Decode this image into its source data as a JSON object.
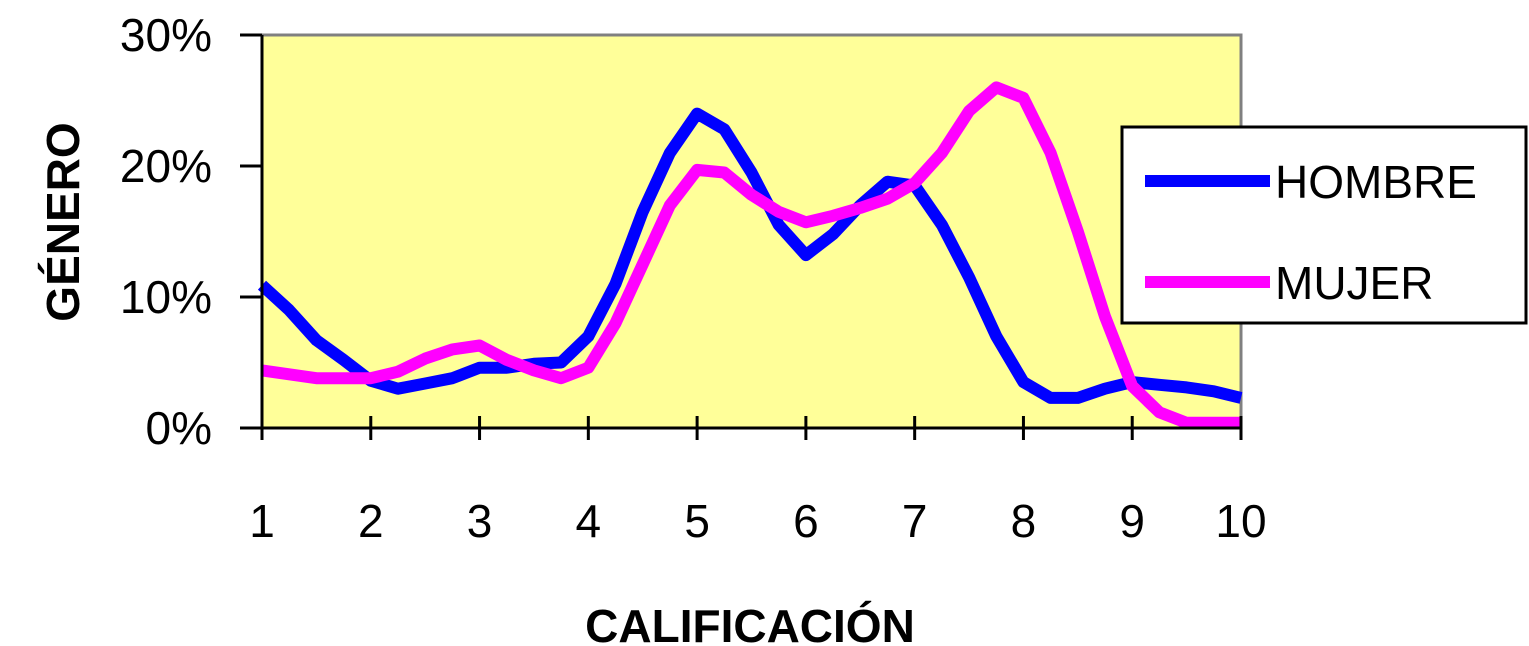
{
  "chart_data": {
    "type": "line",
    "xlabel": "CALIFICACIÓN",
    "ylabel": "GÉNERO",
    "x_ticks": [
      "1",
      "2",
      "3",
      "4",
      "5",
      "6",
      "7",
      "8",
      "9",
      "10"
    ],
    "y_ticks": [
      "0%",
      "10%",
      "20%",
      "30%"
    ],
    "ylim": [
      0,
      30
    ],
    "xlim": [
      1,
      10
    ],
    "grid": false,
    "plot_background": "#ffff99",
    "legend_position": "right",
    "series": [
      {
        "name": "HOMBRE",
        "color": "#0000ff",
        "points": [
          [
            1,
            10.9
          ],
          [
            1.25,
            9.0
          ],
          [
            1.5,
            6.7
          ],
          [
            1.75,
            5.2
          ],
          [
            2,
            3.6
          ],
          [
            2.25,
            3.0
          ],
          [
            2.5,
            3.4
          ],
          [
            2.75,
            3.8
          ],
          [
            3,
            4.6
          ],
          [
            3.25,
            4.6
          ],
          [
            3.5,
            4.9
          ],
          [
            3.75,
            5.0
          ],
          [
            4,
            7.0
          ],
          [
            4.25,
            11.0
          ],
          [
            4.5,
            16.5
          ],
          [
            4.75,
            21.0
          ],
          [
            5,
            24.0
          ],
          [
            5.25,
            22.8
          ],
          [
            5.5,
            19.5
          ],
          [
            5.75,
            15.5
          ],
          [
            6,
            13.2
          ],
          [
            6.25,
            14.8
          ],
          [
            6.5,
            17.0
          ],
          [
            6.75,
            18.8
          ],
          [
            7,
            18.5
          ],
          [
            7.25,
            15.5
          ],
          [
            7.5,
            11.5
          ],
          [
            7.75,
            7.0
          ],
          [
            8,
            3.5
          ],
          [
            8.25,
            2.3
          ],
          [
            8.5,
            2.3
          ],
          [
            8.75,
            3.0
          ],
          [
            9,
            3.5
          ],
          [
            9.25,
            3.3
          ],
          [
            9.5,
            3.1
          ],
          [
            9.75,
            2.8
          ],
          [
            10,
            2.3
          ]
        ]
      },
      {
        "name": "MUJER",
        "color": "#ff00ff",
        "points": [
          [
            1,
            4.4
          ],
          [
            1.25,
            4.1
          ],
          [
            1.5,
            3.8
          ],
          [
            1.75,
            3.8
          ],
          [
            2,
            3.8
          ],
          [
            2.25,
            4.3
          ],
          [
            2.5,
            5.3
          ],
          [
            2.75,
            6.0
          ],
          [
            3,
            6.3
          ],
          [
            3.25,
            5.2
          ],
          [
            3.5,
            4.4
          ],
          [
            3.75,
            3.8
          ],
          [
            4,
            4.6
          ],
          [
            4.25,
            8.0
          ],
          [
            4.5,
            12.5
          ],
          [
            4.75,
            17.0
          ],
          [
            5,
            19.7
          ],
          [
            5.25,
            19.5
          ],
          [
            5.5,
            17.8
          ],
          [
            5.75,
            16.5
          ],
          [
            6,
            15.7
          ],
          [
            6.25,
            16.2
          ],
          [
            6.5,
            16.8
          ],
          [
            6.75,
            17.5
          ],
          [
            7,
            18.7
          ],
          [
            7.25,
            21.0
          ],
          [
            7.5,
            24.2
          ],
          [
            7.75,
            26.0
          ],
          [
            8,
            25.2
          ],
          [
            8.25,
            21.0
          ],
          [
            8.5,
            15.0
          ],
          [
            8.75,
            8.5
          ],
          [
            9,
            3.2
          ],
          [
            9.25,
            1.2
          ],
          [
            9.5,
            0.4
          ],
          [
            9.75,
            0.4
          ],
          [
            10,
            0.4
          ]
        ]
      }
    ]
  }
}
